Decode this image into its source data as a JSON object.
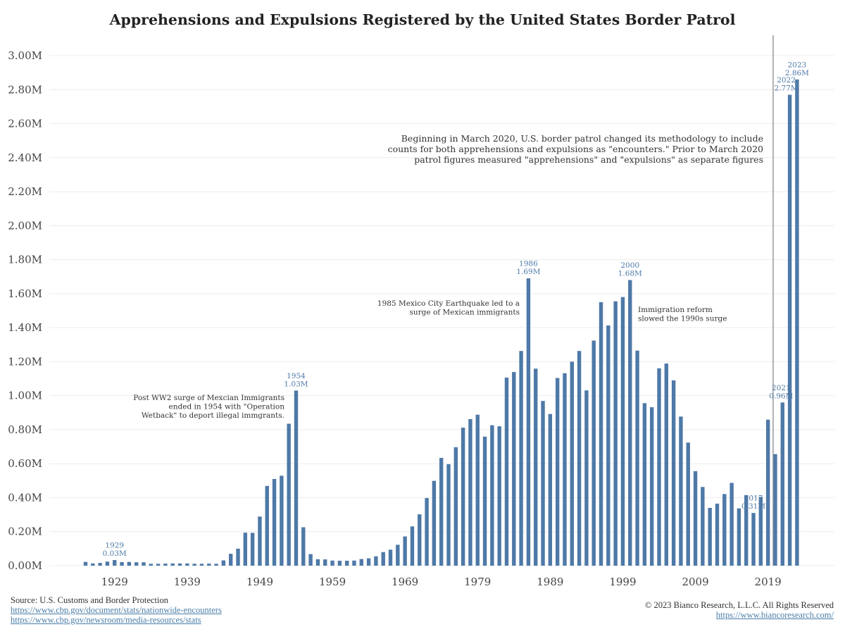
{
  "chart_data": {
    "type": "bar",
    "title": "Apprehensions and Expulsions Registered by the United States Border Patrol",
    "xlabel": "",
    "ylabel": "",
    "ylim": [
      0,
      3.0
    ],
    "yticks": [
      "0.00M",
      "0.20M",
      "0.40M",
      "0.60M",
      "0.80M",
      "1.00M",
      "1.20M",
      "1.40M",
      "1.60M",
      "1.80M",
      "2.00M",
      "2.20M",
      "2.40M",
      "2.60M",
      "2.80M",
      "3.00M"
    ],
    "xticks": [
      "1929",
      "1939",
      "1949",
      "1959",
      "1969",
      "1979",
      "1989",
      "1999",
      "2009",
      "2019"
    ],
    "grid": true,
    "bar_color": "#4e79a7",
    "years": [
      1925,
      1926,
      1927,
      1928,
      1929,
      1930,
      1931,
      1932,
      1933,
      1934,
      1935,
      1936,
      1937,
      1938,
      1939,
      1940,
      1941,
      1942,
      1943,
      1944,
      1945,
      1946,
      1947,
      1948,
      1949,
      1950,
      1951,
      1952,
      1953,
      1954,
      1955,
      1956,
      1957,
      1958,
      1959,
      1960,
      1961,
      1962,
      1963,
      1964,
      1965,
      1966,
      1967,
      1968,
      1969,
      1970,
      1971,
      1972,
      1973,
      1974,
      1975,
      1976,
      1977,
      1978,
      1979,
      1980,
      1981,
      1982,
      1983,
      1984,
      1985,
      1986,
      1987,
      1988,
      1989,
      1990,
      1991,
      1992,
      1993,
      1994,
      1995,
      1996,
      1997,
      1998,
      1999,
      2000,
      2001,
      2002,
      2003,
      2004,
      2005,
      2006,
      2007,
      2008,
      2009,
      2010,
      2011,
      2012,
      2013,
      2014,
      2015,
      2016,
      2017,
      2018,
      2019,
      2020,
      2021,
      2022,
      2023
    ],
    "values": [
      0.022,
      0.013,
      0.016,
      0.024,
      0.033,
      0.021,
      0.022,
      0.02,
      0.02,
      0.011,
      0.011,
      0.012,
      0.013,
      0.013,
      0.013,
      0.011,
      0.011,
      0.012,
      0.011,
      0.031,
      0.07,
      0.1,
      0.194,
      0.193,
      0.289,
      0.469,
      0.51,
      0.529,
      0.835,
      1.03,
      0.226,
      0.068,
      0.038,
      0.037,
      0.03,
      0.029,
      0.029,
      0.03,
      0.039,
      0.043,
      0.055,
      0.08,
      0.094,
      0.123,
      0.172,
      0.231,
      0.302,
      0.398,
      0.499,
      0.634,
      0.597,
      0.697,
      0.812,
      0.862,
      0.888,
      0.759,
      0.826,
      0.82,
      1.106,
      1.139,
      1.263,
      1.69,
      1.159,
      0.969,
      0.892,
      1.104,
      1.132,
      1.2,
      1.263,
      1.031,
      1.324,
      1.55,
      1.413,
      1.555,
      1.58,
      1.68,
      1.265,
      0.956,
      0.932,
      1.161,
      1.189,
      1.09,
      0.877,
      0.724,
      0.556,
      0.463,
      0.34,
      0.365,
      0.421,
      0.487,
      0.337,
      0.415,
      0.31,
      0.404,
      0.859,
      0.656,
      0.96,
      2.77,
      2.86
    ],
    "bar_labels": [
      {
        "year": 1929,
        "label": [
          "1929",
          "0.03M"
        ]
      },
      {
        "year": 1954,
        "label": [
          "1954",
          "1.03M"
        ]
      },
      {
        "year": 1986,
        "label": [
          "1986",
          "1.69M"
        ]
      },
      {
        "year": 2000,
        "label": [
          "2000",
          "1.68M"
        ]
      },
      {
        "year": 2017,
        "label": [
          "2017",
          "0.31M"
        ]
      },
      {
        "year": 2021,
        "label": [
          "2021",
          "0.96M"
        ]
      },
      {
        "year": 2022,
        "label": [
          "2022",
          "2.77M"
        ]
      },
      {
        "year": 2023,
        "label": [
          "2023",
          "2.86M"
        ]
      }
    ],
    "annotations": [
      {
        "name": "annotation-ww2",
        "lines": [
          "Post WW2 surge of Mexcian Immigrants",
          "ended in 1954 with \"Operation",
          "Wetback\" to deport illegal immgrants."
        ]
      },
      {
        "name": "annotation-1985",
        "lines": [
          "1985 Mexico City Earthquake led to a",
          "surge of Mexican immigrants"
        ]
      },
      {
        "name": "annotation-1990s",
        "lines": [
          "Immigration reform",
          "slowed the 1990s surge"
        ]
      },
      {
        "name": "annotation-2020",
        "lines": [
          "Beginning in March 2020, U.S. border patrol changed its methodology to include",
          "counts for both apprehensions and expulsions as \"encounters.\" Prior to March 2020",
          "patrol figures measured \"apprehensions\" and \"expulsions\" as separate figures"
        ]
      }
    ],
    "reference_line_year": 2020
  },
  "footer": {
    "source": "Source: U.S. Customs and Border Protection",
    "link1": "https://www.cbp.gov/document/stats/nationwide-encounters",
    "link2": "https://www.cbp.gov/newsroom/media-resources/stats",
    "copyright": "© 2023 Bianco Research, L.L.C. All Rights Reserved",
    "link3": "https://www.biancoresearch.com/"
  }
}
